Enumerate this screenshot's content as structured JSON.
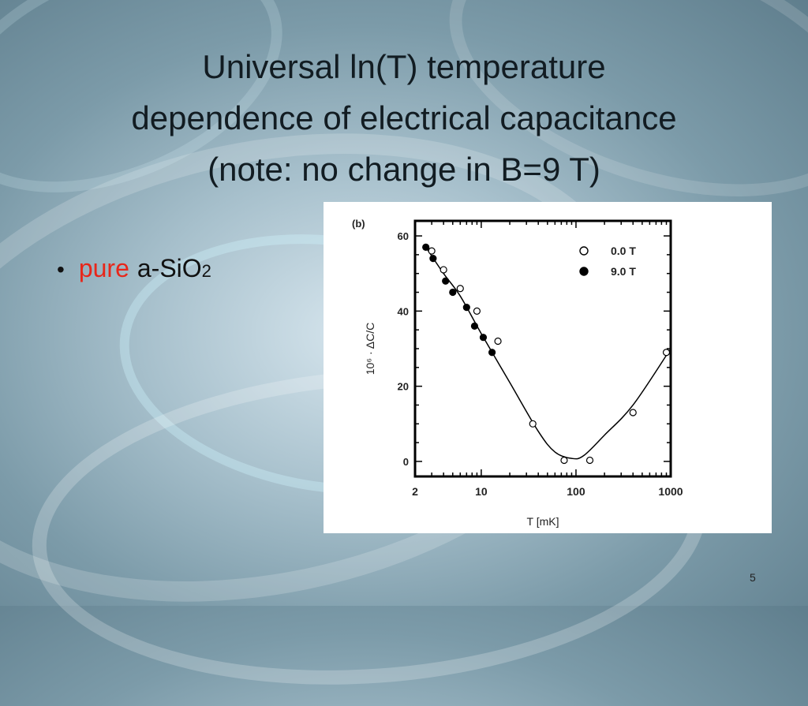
{
  "slide": {
    "title_lines": [
      "Universal ln(T) temperature",
      "dependence of electrical capacitance",
      "(note: no change in B=9 T)"
    ],
    "bullet": {
      "red_word": "pure",
      "text": "a-SiO",
      "subscript": "2"
    },
    "page_number": "5"
  },
  "chart_data": {
    "type": "scatter",
    "panel_label": "(b)",
    "xlabel": "T  [mK]",
    "ylabel": "10⁶ · ΔC/C",
    "x_scale": "log",
    "xlim": [
      2,
      1000
    ],
    "ylim": [
      -4,
      64
    ],
    "x_ticks": [
      2,
      10,
      100,
      1000
    ],
    "x_tick_labels": [
      "2",
      "10",
      "100",
      "1000"
    ],
    "y_ticks": [
      0,
      20,
      40,
      60
    ],
    "y_tick_labels": [
      "0",
      "20",
      "40",
      "60"
    ],
    "legend_position": "top-right",
    "grid": false,
    "series": [
      {
        "name": "0.0 T",
        "marker": "open-circle",
        "x": [
          3,
          4,
          6,
          9,
          15,
          35,
          75,
          140,
          400,
          900
        ],
        "y": [
          56,
          51,
          46,
          40,
          32,
          10,
          0.3,
          0.3,
          13,
          29
        ]
      },
      {
        "name": "9.0 T",
        "marker": "filled-circle",
        "x": [
          2.6,
          3.1,
          4.2,
          5.0,
          7.0,
          8.5,
          10.5,
          13.0
        ],
        "y": [
          57,
          54,
          48,
          45,
          41,
          36,
          33,
          29
        ]
      }
    ],
    "fit_curve": {
      "x": [
        2.6,
        4,
        6,
        10,
        20,
        40,
        60,
        90,
        120,
        200,
        400,
        1000
      ],
      "y": [
        57,
        50,
        44,
        34,
        21,
        8,
        2.5,
        0.8,
        1.5,
        7,
        15,
        30
      ]
    }
  }
}
